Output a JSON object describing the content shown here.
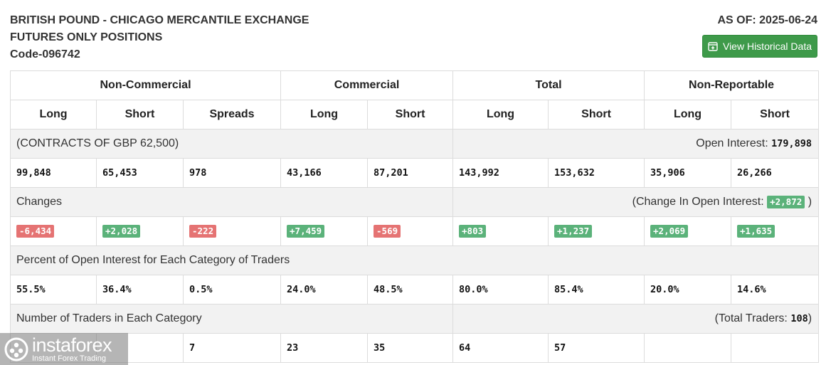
{
  "header": {
    "title_line1": "BRITISH POUND - CHICAGO MERCANTILE EXCHANGE",
    "title_line2": "FUTURES ONLY POSITIONS",
    "code": "Code-096742",
    "as_of": "AS OF: 2025-06-24",
    "historical_button": "View Historical Data"
  },
  "groups": [
    "Non-Commercial",
    "Commercial",
    "Total",
    "Non-Reportable"
  ],
  "subheads": [
    "Long",
    "Short",
    "Spreads",
    "Long",
    "Short",
    "Long",
    "Short",
    "Long",
    "Short"
  ],
  "contracts": {
    "label": "(CONTRACTS OF GBP 62,500)",
    "oi_label": "Open Interest: ",
    "oi_value": "179,898",
    "values": [
      "99,848",
      "65,453",
      "978",
      "43,166",
      "87,201",
      "143,992",
      "153,632",
      "35,906",
      "26,266"
    ]
  },
  "changes": {
    "label": "Changes",
    "coi_label": "(Change In Open Interest: ",
    "coi_value": "+2,872",
    "coi_close": " )",
    "values": [
      "-6,434",
      "+2,028",
      "-222",
      "+7,459",
      "-569",
      "+803",
      "+1,237",
      "+2,069",
      "+1,635"
    ]
  },
  "percent": {
    "label": "Percent of Open Interest for Each Category of Traders",
    "values": [
      "55.5%",
      "36.4%",
      "0.5%",
      "24.0%",
      "48.5%",
      "80.0%",
      "85.4%",
      "20.0%",
      "14.6%"
    ]
  },
  "traders": {
    "label": "Number of Traders in Each Category",
    "total_label": "(Total Traders: ",
    "total_value": "108",
    "total_close": ")",
    "values": [
      "",
      "",
      "7",
      "23",
      "35",
      "64",
      "57",
      "",
      ""
    ]
  },
  "watermark": {
    "name": "instaforex",
    "sub": "Instant Forex Trading"
  },
  "colors": {
    "positive": "#5bb27a",
    "negative": "#e57373",
    "button": "#3e9a4a",
    "band": "#f2f2f2"
  }
}
